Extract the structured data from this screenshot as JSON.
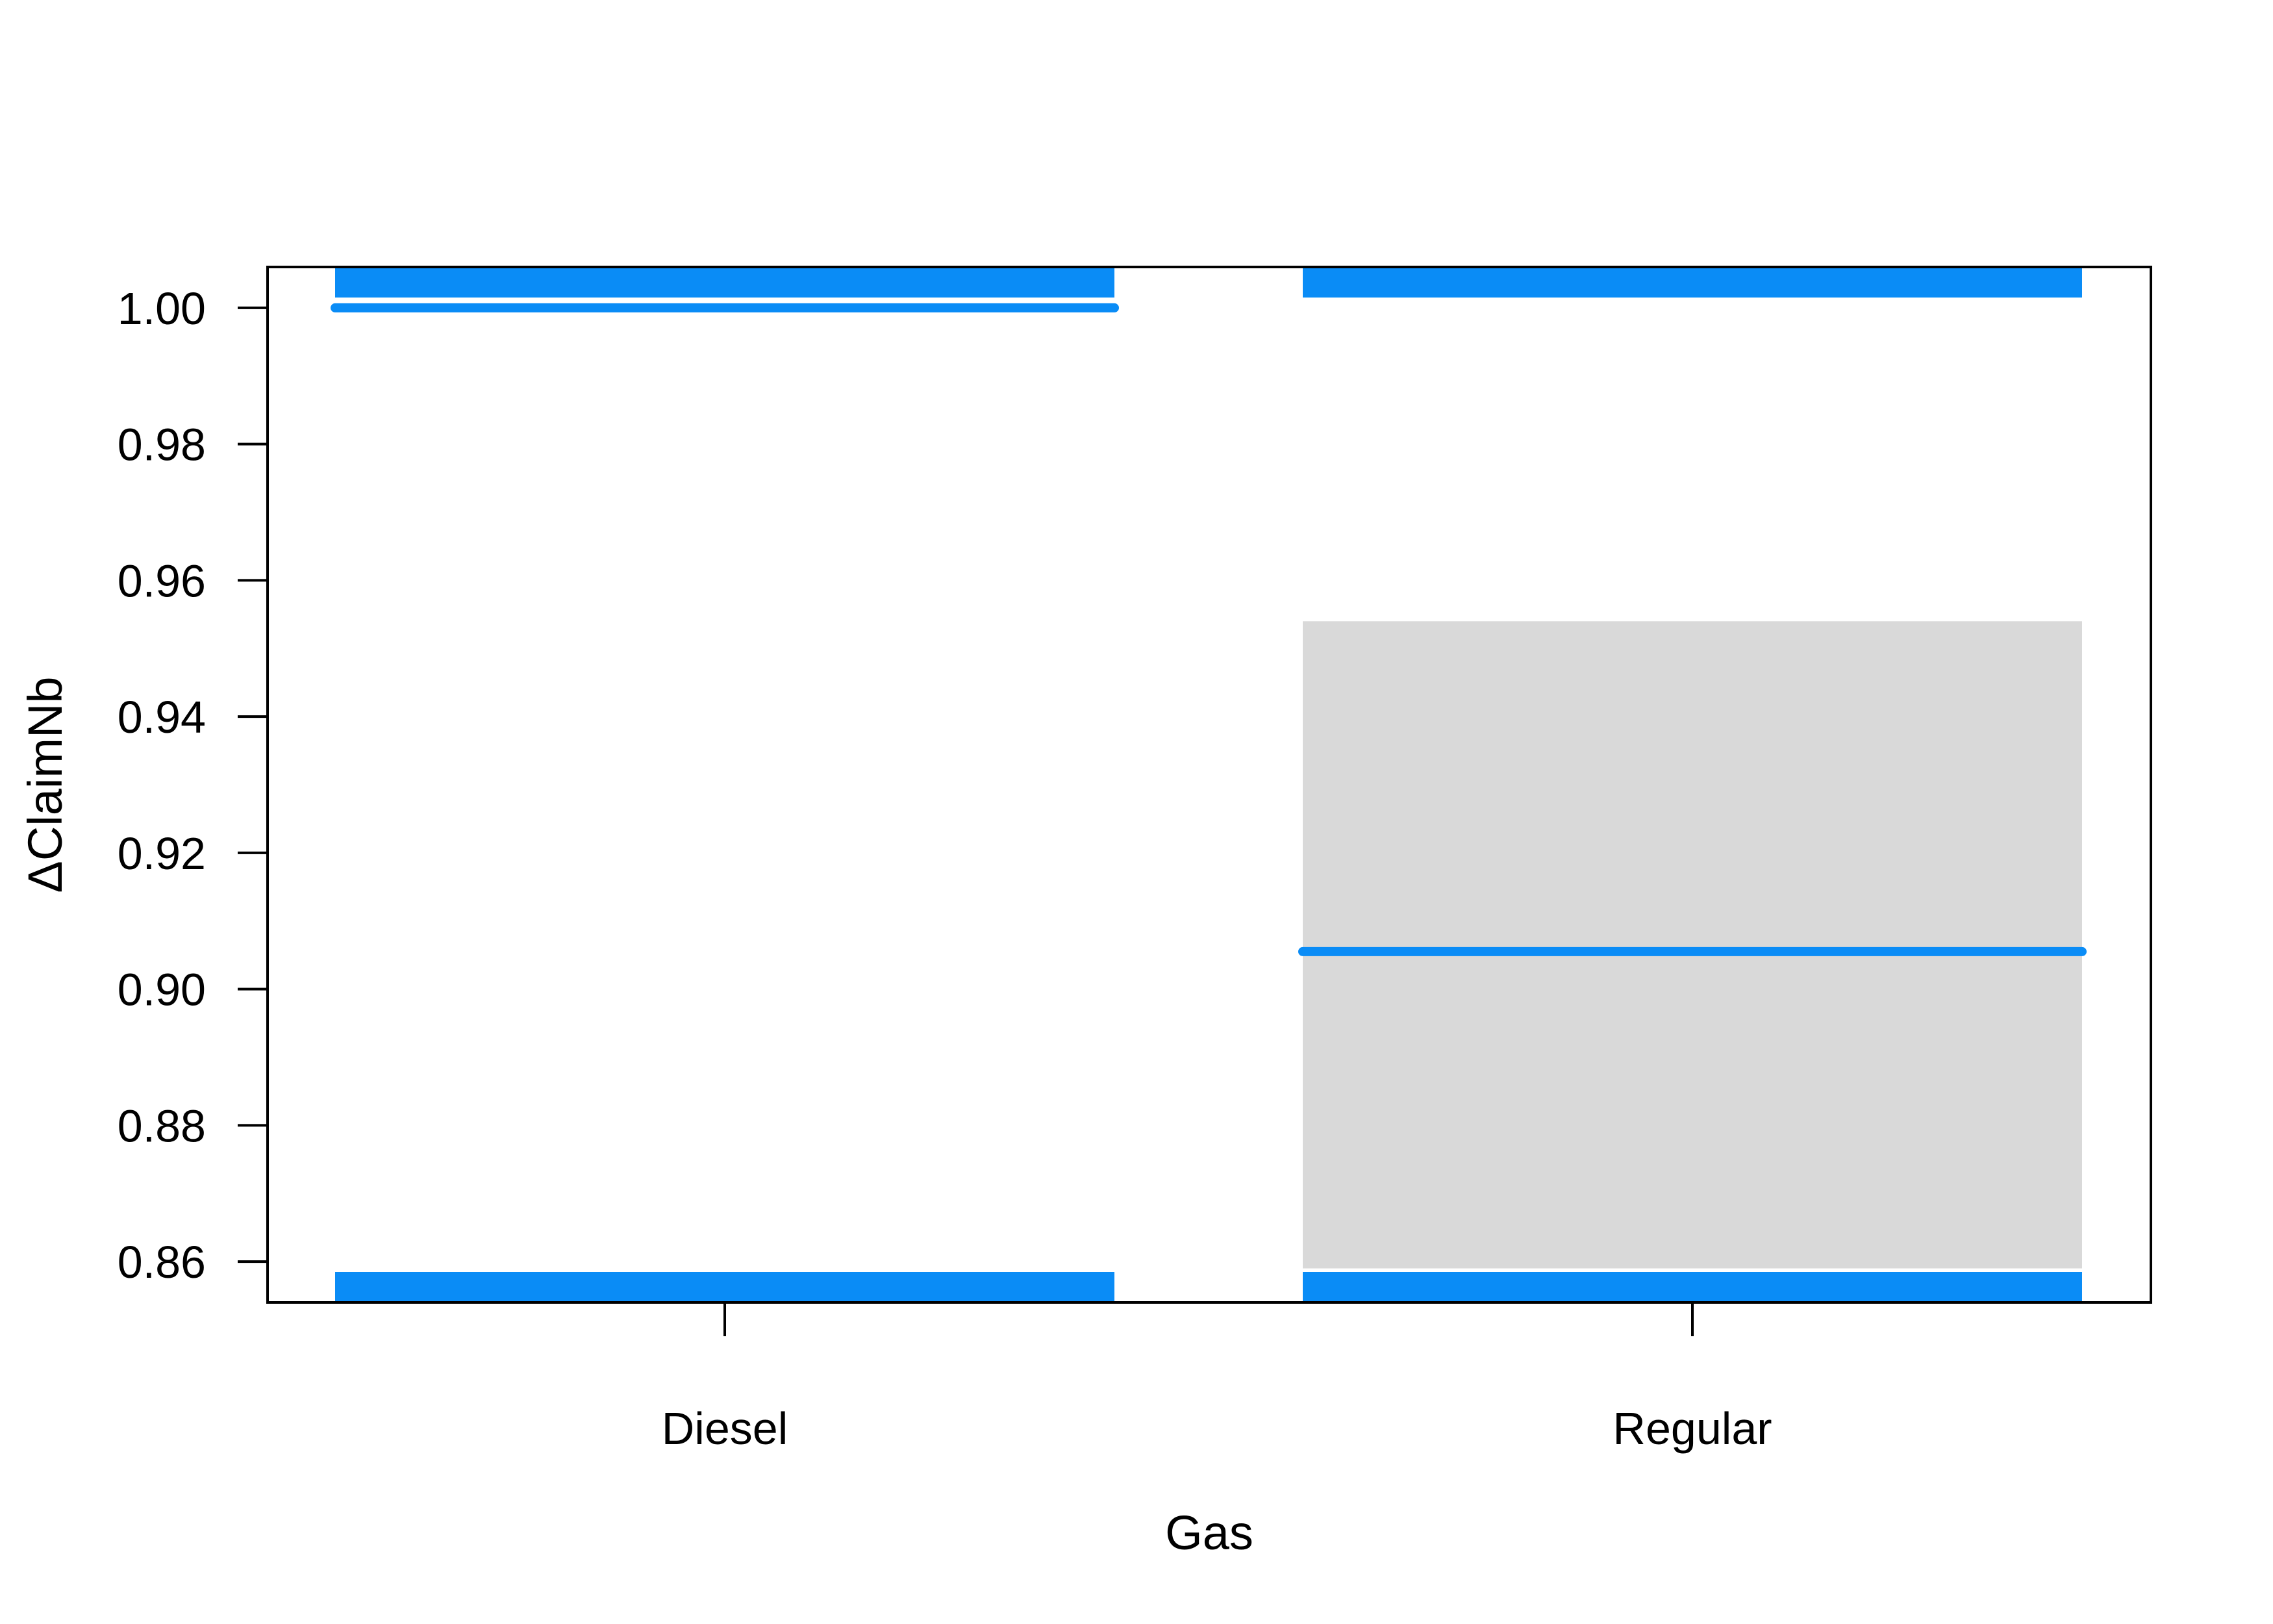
{
  "chart_data": {
    "type": "bar",
    "chart_kind": "effect-plot",
    "xlabel": "Gas",
    "ylabel": "ΔClaimNb",
    "categories": [
      "Diesel",
      "Regular"
    ],
    "series": [
      {
        "values": [
          1.0,
          0.9055
        ]
      }
    ],
    "confidence_band": [
      {
        "category": "Diesel",
        "lower": 0.9999,
        "upper": 1.0
      },
      {
        "category": "Regular",
        "lower": 0.859,
        "upper": 0.954
      }
    ],
    "rug_marks": {
      "top": 1.0,
      "bottom": 0.86
    },
    "ylim": [
      0.854,
      1.006
    ],
    "yticks": [
      1.0,
      0.98,
      0.96,
      0.94,
      0.92,
      0.9,
      0.88,
      0.86
    ],
    "ytick_labels": [
      "1.00",
      "0.98",
      "0.96",
      "0.94",
      "0.92",
      "0.90",
      "0.88",
      "0.86"
    ],
    "grid": false,
    "legend": "none",
    "colors": {
      "line": "#0A8CF6",
      "band": "#D9D9D9",
      "axis": "#000000"
    }
  }
}
